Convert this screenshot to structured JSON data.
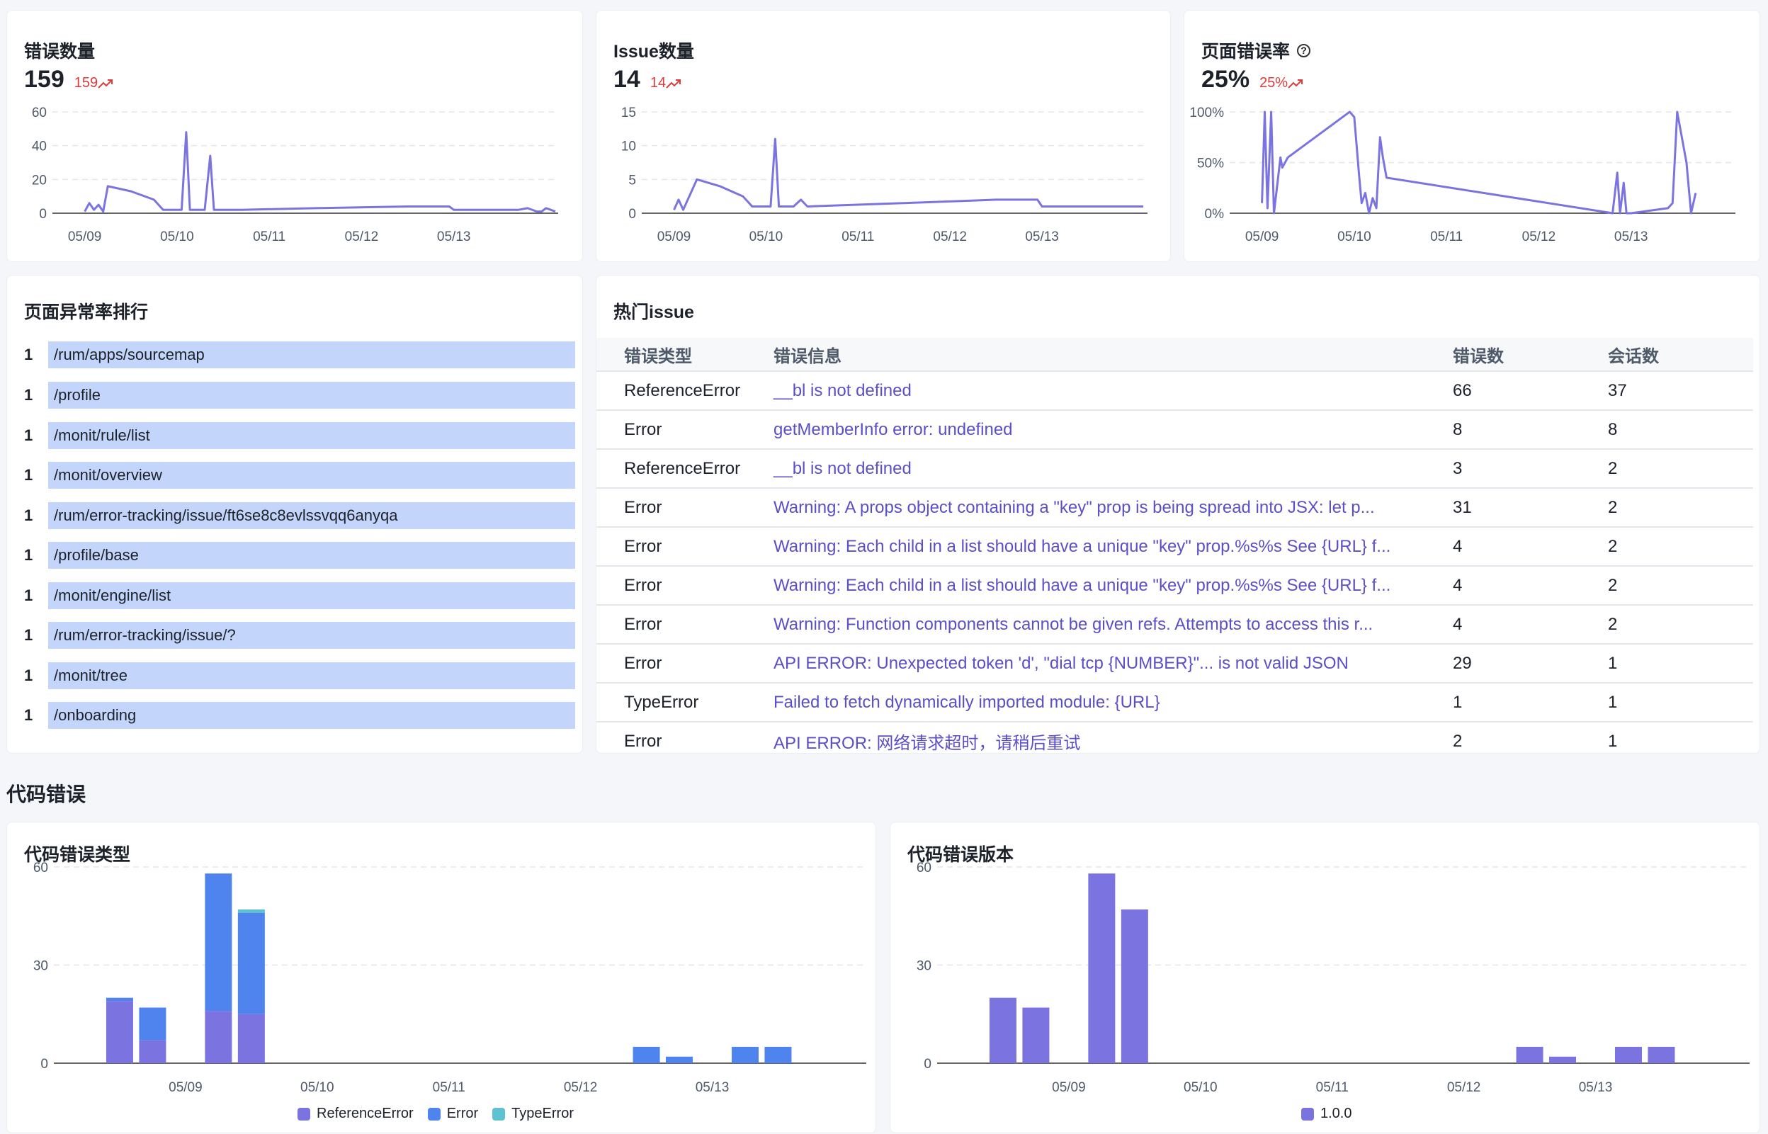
{
  "colors": {
    "line": "#7b74e0",
    "ref": "#7b74e0",
    "err": "#4f83ee",
    "type": "#5ec2cf",
    "rank_bar": "#c3d5fb",
    "link": "#5b4fc7",
    "trend": "#e03b3b"
  },
  "kpis": [
    {
      "title": "错误数量",
      "value": "159",
      "trend": "159",
      "trend_icon": "trend-up-icon"
    },
    {
      "title": "Issue数量",
      "value": "14",
      "trend": "14",
      "trend_icon": "trend-up-icon"
    },
    {
      "title": "页面错误率",
      "value": "25%",
      "trend": "25%",
      "trend_icon": "trend-up-icon",
      "help_icon": "question-circle-icon",
      "help_glyph": "?"
    }
  ],
  "ranking": {
    "title": "页面异常率排行",
    "items": [
      {
        "rank": "1",
        "path": "/rum/apps/sourcemap"
      },
      {
        "rank": "1",
        "path": "/profile"
      },
      {
        "rank": "1",
        "path": "/monit/rule/list"
      },
      {
        "rank": "1",
        "path": "/monit/overview"
      },
      {
        "rank": "1",
        "path": "/rum/error-tracking/issue/ft6se8c8evlssvqq6anyqa"
      },
      {
        "rank": "1",
        "path": "/profile/base"
      },
      {
        "rank": "1",
        "path": "/monit/engine/list"
      },
      {
        "rank": "1",
        "path": "/rum/error-tracking/issue/?"
      },
      {
        "rank": "1",
        "path": "/monit/tree"
      },
      {
        "rank": "1",
        "path": "/onboarding"
      }
    ]
  },
  "hot_issues": {
    "title": "热门issue",
    "headers": [
      "错误类型",
      "错误信息",
      "错误数",
      "会话数"
    ],
    "rows": [
      [
        "ReferenceError",
        "__bl is not defined",
        "66",
        "37"
      ],
      [
        "Error",
        "getMemberInfo error: undefined",
        "8",
        "8"
      ],
      [
        "ReferenceError",
        "__bl is not defined",
        "3",
        "2"
      ],
      [
        "Error",
        "Warning: A props object containing a \"key\" prop is being spread into JSX: let p...",
        "31",
        "2"
      ],
      [
        "Error",
        "Warning: Each child in a list should have a unique \"key\" prop.%s%s See {URL} f...",
        "4",
        "2"
      ],
      [
        "Error",
        "Warning: Each child in a list should have a unique \"key\" prop.%s%s See {URL} f...",
        "4",
        "2"
      ],
      [
        "Error",
        "Warning: Function components cannot be given refs. Attempts to access this r...",
        "4",
        "2"
      ],
      [
        "Error",
        "API ERROR: Unexpected token 'd', \"dial tcp {NUMBER}\"... is not valid JSON",
        "29",
        "1"
      ],
      [
        "TypeError",
        "Failed to fetch dynamically imported module: {URL}",
        "1",
        "1"
      ],
      [
        "Error",
        "API ERROR: 网络请求超时，请稍后重试",
        "2",
        "1"
      ]
    ]
  },
  "code_errors_section": "代码错误",
  "chart_data": [
    {
      "type": "line",
      "title": "错误数量",
      "x_ticks": [
        "05/09",
        "05/10",
        "05/11",
        "05/12",
        "05/13"
      ],
      "y_ticks": [
        "0",
        "20",
        "40",
        "60"
      ],
      "ylim": [
        0,
        60
      ],
      "xlim": [
        0,
        5.1
      ],
      "series": [
        {
          "points": [
            [
              0.0,
              1
            ],
            [
              0.05,
              6
            ],
            [
              0.1,
              2
            ],
            [
              0.15,
              5
            ],
            [
              0.2,
              1
            ],
            [
              0.25,
              16
            ],
            [
              0.5,
              13
            ],
            [
              0.75,
              8
            ],
            [
              0.85,
              2
            ],
            [
              1.05,
              2
            ],
            [
              1.1,
              48
            ],
            [
              1.14,
              2
            ],
            [
              1.3,
              2
            ],
            [
              1.36,
              34
            ],
            [
              1.4,
              2
            ],
            [
              1.7,
              2
            ],
            [
              2.5,
              3
            ],
            [
              3.5,
              4
            ],
            [
              3.95,
              4
            ],
            [
              4.0,
              2
            ],
            [
              4.3,
              2
            ],
            [
              4.7,
              2
            ],
            [
              4.8,
              3
            ],
            [
              4.9,
              1
            ],
            [
              4.95,
              1
            ],
            [
              5.0,
              3
            ],
            [
              5.05,
              2
            ],
            [
              5.1,
              1
            ]
          ]
        }
      ]
    },
    {
      "type": "line",
      "title": "Issue数量",
      "x_ticks": [
        "05/09",
        "05/10",
        "05/11",
        "05/12",
        "05/13"
      ],
      "y_ticks": [
        "0",
        "5",
        "10",
        "15"
      ],
      "ylim": [
        0,
        15
      ],
      "xlim": [
        0,
        5.1
      ],
      "series": [
        {
          "points": [
            [
              0.0,
              0.5
            ],
            [
              0.05,
              2
            ],
            [
              0.1,
              0.5
            ],
            [
              0.25,
              5
            ],
            [
              0.5,
              4
            ],
            [
              0.75,
              2.5
            ],
            [
              0.85,
              1
            ],
            [
              1.05,
              1
            ],
            [
              1.1,
              11
            ],
            [
              1.14,
              1
            ],
            [
              1.3,
              1
            ],
            [
              1.38,
              2
            ],
            [
              1.45,
              1
            ],
            [
              2.5,
              1.5
            ],
            [
              3.5,
              2
            ],
            [
              3.95,
              2
            ],
            [
              4.0,
              1
            ],
            [
              5.1,
              1
            ]
          ]
        }
      ]
    },
    {
      "type": "line",
      "title": "页面错误率",
      "x_ticks": [
        "05/09",
        "05/10",
        "05/11",
        "05/12",
        "05/13"
      ],
      "y_ticks": [
        "0%",
        "50%",
        "100%"
      ],
      "ylim": [
        0,
        100
      ],
      "xlim": [
        0,
        5.1
      ],
      "series": [
        {
          "points": [
            [
              0.0,
              10
            ],
            [
              0.03,
              100
            ],
            [
              0.06,
              5
            ],
            [
              0.1,
              100
            ],
            [
              0.13,
              0
            ],
            [
              0.2,
              55
            ],
            [
              0.22,
              45
            ],
            [
              0.28,
              55
            ],
            [
              0.95,
              100
            ],
            [
              1.0,
              95
            ],
            [
              1.05,
              40
            ],
            [
              1.08,
              10
            ],
            [
              1.12,
              20
            ],
            [
              1.16,
              0
            ],
            [
              1.2,
              15
            ],
            [
              1.24,
              5
            ],
            [
              1.28,
              75
            ],
            [
              1.31,
              55
            ],
            [
              1.35,
              35
            ],
            [
              3.8,
              0
            ],
            [
              3.85,
              40
            ],
            [
              3.88,
              0
            ],
            [
              3.92,
              30
            ],
            [
              3.95,
              0
            ],
            [
              4.0,
              0
            ],
            [
              4.4,
              5
            ],
            [
              4.45,
              10
            ],
            [
              4.5,
              100
            ],
            [
              4.6,
              50
            ],
            [
              4.65,
              0
            ],
            [
              4.7,
              20
            ]
          ]
        }
      ]
    },
    {
      "type": "bar",
      "stacked": true,
      "title": "代码错误类型",
      "x_ticks": [
        "05/09",
        "05/10",
        "05/11",
        "05/12",
        "05/13"
      ],
      "y_ticks": [
        "0",
        "30",
        "60"
      ],
      "ylim": [
        0,
        60
      ],
      "xlim": [
        0,
        5.1
      ],
      "bar_x": [
        -0.5,
        -0.25,
        0.25,
        0.5,
        3.5,
        3.75,
        4.25,
        4.5
      ],
      "series": [
        {
          "name": "ReferenceError",
          "values": [
            19,
            7,
            16,
            15,
            0,
            0,
            0,
            0
          ]
        },
        {
          "name": "Error",
          "values": [
            1,
            10,
            42,
            31,
            5,
            2,
            5,
            5
          ]
        },
        {
          "name": "TypeError",
          "values": [
            0,
            0,
            0,
            1,
            0,
            0,
            0,
            0
          ]
        }
      ]
    },
    {
      "type": "bar",
      "title": "代码错误版本",
      "x_ticks": [
        "05/09",
        "05/10",
        "05/11",
        "05/12",
        "05/13"
      ],
      "y_ticks": [
        "0",
        "30",
        "60"
      ],
      "ylim": [
        0,
        60
      ],
      "xlim": [
        0,
        5.1
      ],
      "bar_x": [
        -0.5,
        -0.25,
        0.25,
        0.5,
        3.5,
        3.75,
        4.25,
        4.5
      ],
      "series": [
        {
          "name": "1.0.0",
          "values": [
            20,
            17,
            58,
            47,
            5,
            2,
            5,
            5
          ]
        }
      ]
    }
  ]
}
